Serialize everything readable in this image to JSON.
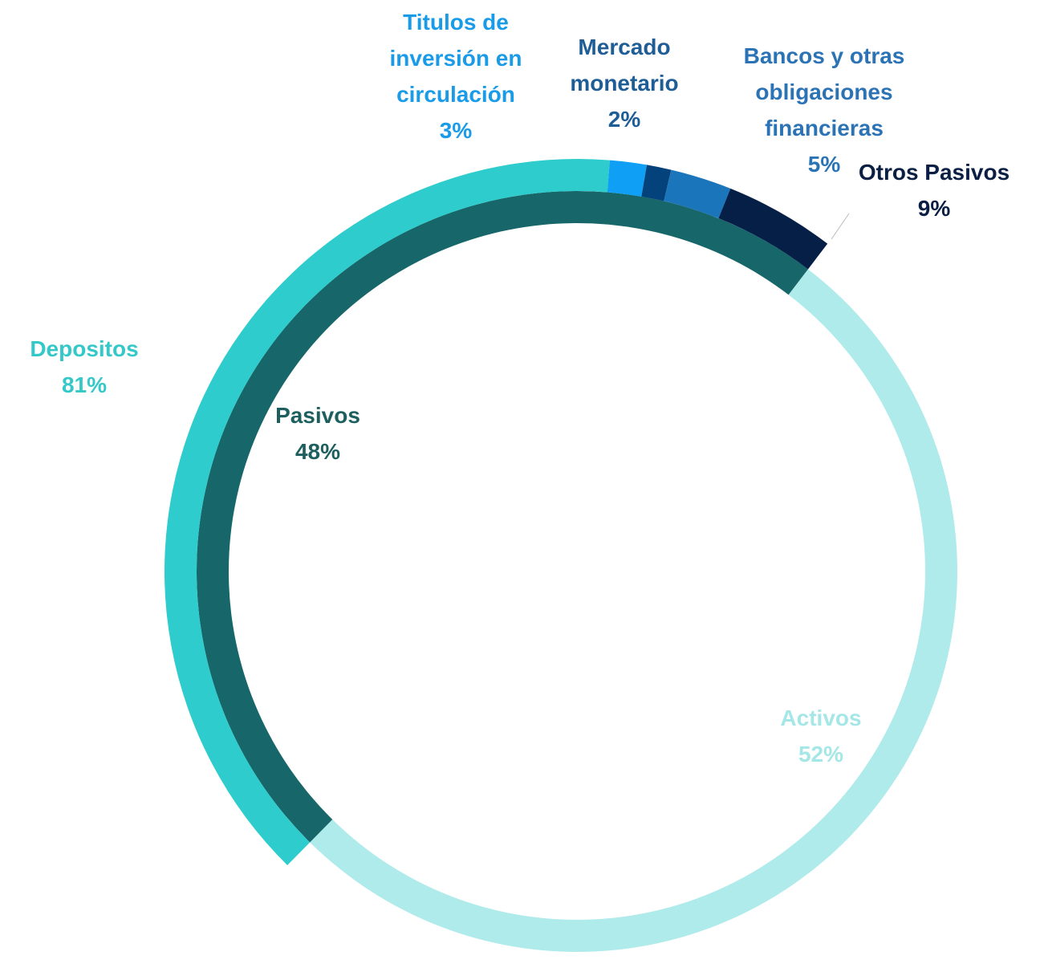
{
  "chart_data": {
    "type": "sunburst",
    "categories": [
      "Activos",
      "Pasivos"
    ],
    "values": [
      52,
      48
    ],
    "value_labels": [
      "52%",
      "48%"
    ],
    "colors": [
      "#aeebea",
      "#17676a"
    ],
    "label_colors": [
      "#a5e6e6",
      "#1d5f5f"
    ],
    "children": {
      "parent": 1,
      "categories": [
        "Depositos",
        "Titulos de inversión en circulación",
        "Mercado monetario",
        "Bancos y otras obligaciones financieras",
        "Otros Pasivos"
      ],
      "values": [
        81,
        3,
        2,
        5,
        9
      ],
      "value_labels": [
        "81%",
        "3%",
        "2%",
        "5%",
        "9%"
      ],
      "colors": [
        "#2ecccc",
        "#0fa0f5",
        "#03427a",
        "#1b75bb",
        "#061f47"
      ],
      "label_colors": [
        "#35c8c8",
        "#1a9be8",
        "#1f5d96",
        "#2b73b5",
        "#0b1f45"
      ]
    }
  }
}
